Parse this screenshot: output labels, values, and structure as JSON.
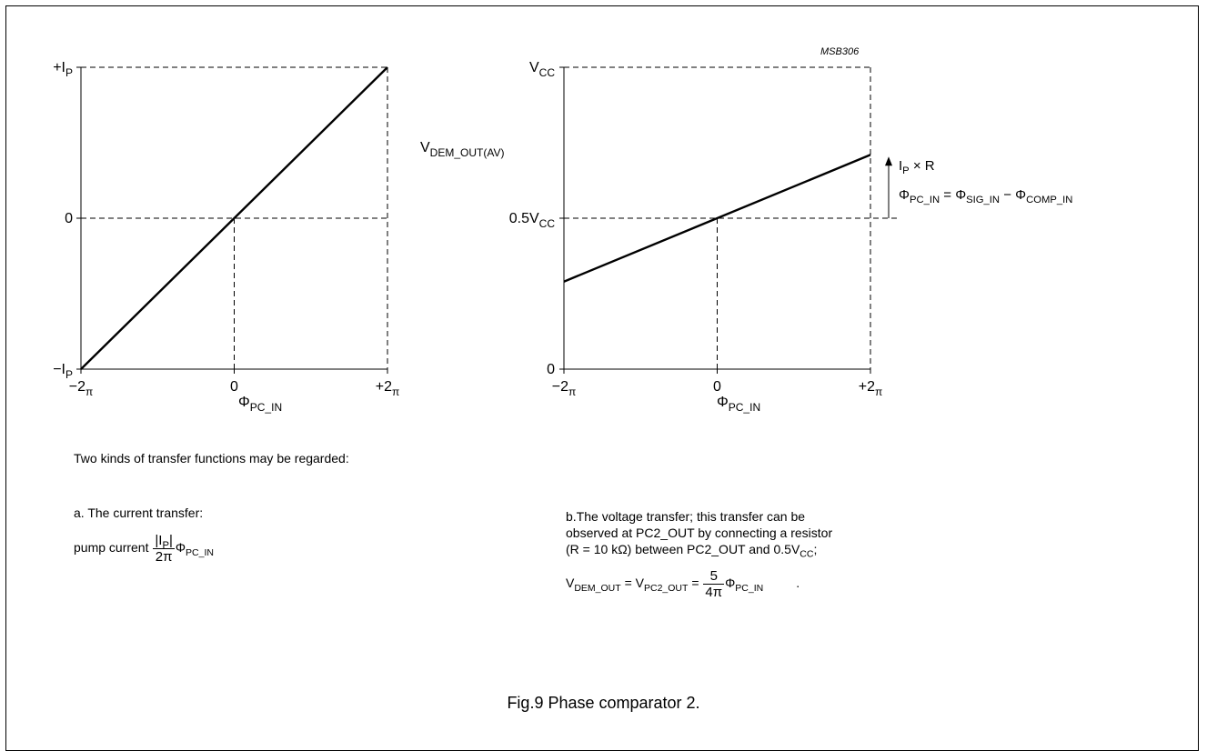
{
  "figure_code": "MSB306",
  "caption": "Fig.9  Phase comparator 2.",
  "description": {
    "intro": "Two kinds of transfer functions may be regarded:",
    "current": {
      "heading": "a. The current transfer:",
      "formula_prefix": "pump current ",
      "num_main": "|I",
      "num_sub": "P",
      "num_end": "|",
      "den": "2π",
      "phi": "Φ",
      "phi_sub": "PC_IN"
    },
    "voltage": {
      "line1": "b.The voltage transfer; this transfer can be",
      "line2": "observed at PC2_OUT by connecting a resistor",
      "line3_main": "(R = 10 kΩ) between PC2_OUT and 0.5V",
      "line3_sub": "CC",
      "line3_end": ";",
      "v1": "V",
      "v1_sub": "DEM_OUT",
      "eq": " = ",
      "v2": "V",
      "v2_sub": "PC2_OUT",
      "num": "5",
      "den": "4π",
      "phi": "Φ",
      "phi_sub": "PC_IN",
      "end": "."
    }
  },
  "annotation": {
    "ipr_main": "I",
    "ipr_sub": "P",
    "ipr_end": " × R",
    "eq_phi1": "Φ",
    "eq_phi1_sub": "PC_IN",
    "eq_mid": " = Φ",
    "eq_phi2_sub": "SIG_IN",
    "eq_minus": " − Φ",
    "eq_phi3_sub": "COMP_IN"
  },
  "chart_data": [
    {
      "type": "line",
      "title": "",
      "xlabel": "Φ",
      "xlabel_sub": "PC_IN",
      "ylabel": "",
      "xlim": [
        -2,
        2
      ],
      "ylim": [
        -1,
        1
      ],
      "x_ticks": [
        {
          "value": -2,
          "main": "−2",
          "sub": "π"
        },
        {
          "value": 0,
          "main": "0",
          "sub": ""
        },
        {
          "value": 2,
          "main": "+2",
          "sub": "π"
        }
      ],
      "y_ticks": [
        {
          "value": 1,
          "main": "+I",
          "sub": "P"
        },
        {
          "value": 0,
          "main": "0",
          "sub": ""
        },
        {
          "value": -1,
          "main": "−I",
          "sub": "P"
        }
      ],
      "series": [
        {
          "x": [
            -2,
            2
          ],
          "y": [
            -1,
            1
          ]
        }
      ]
    },
    {
      "type": "line",
      "title": "",
      "xlabel": "Φ",
      "xlabel_sub": "PC_IN",
      "ylabel": "V",
      "ylabel_sub": "DEM_OUT(AV)",
      "xlim": [
        -2,
        2
      ],
      "ylim": [
        0,
        1
      ],
      "x_ticks": [
        {
          "value": -2,
          "main": "−2",
          "sub": "π"
        },
        {
          "value": 0,
          "main": "0",
          "sub": ""
        },
        {
          "value": 2,
          "main": "+2",
          "sub": "π"
        }
      ],
      "y_ticks": [
        {
          "value": 1,
          "main": "V",
          "sub": "CC"
        },
        {
          "value": 0.5,
          "main": "0.5V",
          "sub": "CC"
        },
        {
          "value": 0,
          "main": "0",
          "sub": ""
        }
      ],
      "series": [
        {
          "x": [
            -2,
            2
          ],
          "y": [
            0.29,
            0.71
          ]
        }
      ]
    }
  ]
}
